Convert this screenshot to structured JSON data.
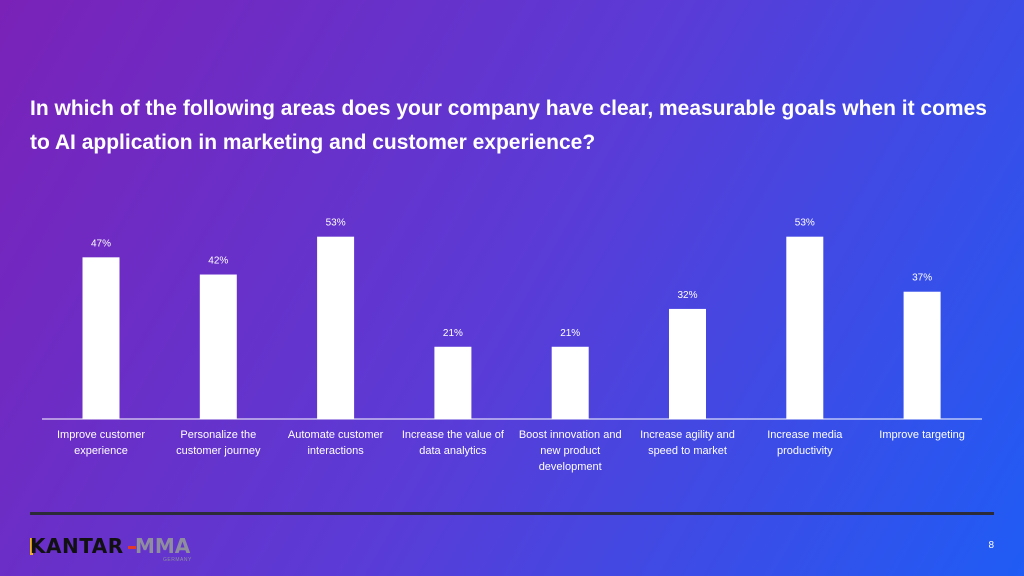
{
  "slide": {
    "title": "In which of the following areas does your company have clear, measurable goals when it comes to AI application in marketing and customer experience?",
    "page_number": "8"
  },
  "logos": {
    "kantar": "KANTAR",
    "mma": "MMA",
    "mma_sub": "GERMANY"
  },
  "chart_data": {
    "type": "bar",
    "title": "In which of the following areas does your company have clear, measurable goals when it comes to AI application in marketing and customer experience?",
    "categories": [
      "Improve customer experience",
      "Personalize the customer journey",
      "Automate customer interactions",
      "Increase the value of data analytics",
      "Boost innovation and new product development",
      "Increase agility and speed to market",
      "Increase media productivity",
      "Improve targeting"
    ],
    "values": [
      47,
      42,
      53,
      21,
      21,
      32,
      53,
      37
    ],
    "data_labels": [
      "47%",
      "42%",
      "53%",
      "21%",
      "21%",
      "32%",
      "53%",
      "37%"
    ],
    "unit": "%",
    "xlabel": "",
    "ylabel": "",
    "ylim": [
      0,
      55
    ],
    "grid": false,
    "legend": "none",
    "bar_color": "#ffffff"
  },
  "colors": {
    "gradient_start": "#7a22b8",
    "gradient_end": "#1f5cf5",
    "text": "#ffffff"
  }
}
